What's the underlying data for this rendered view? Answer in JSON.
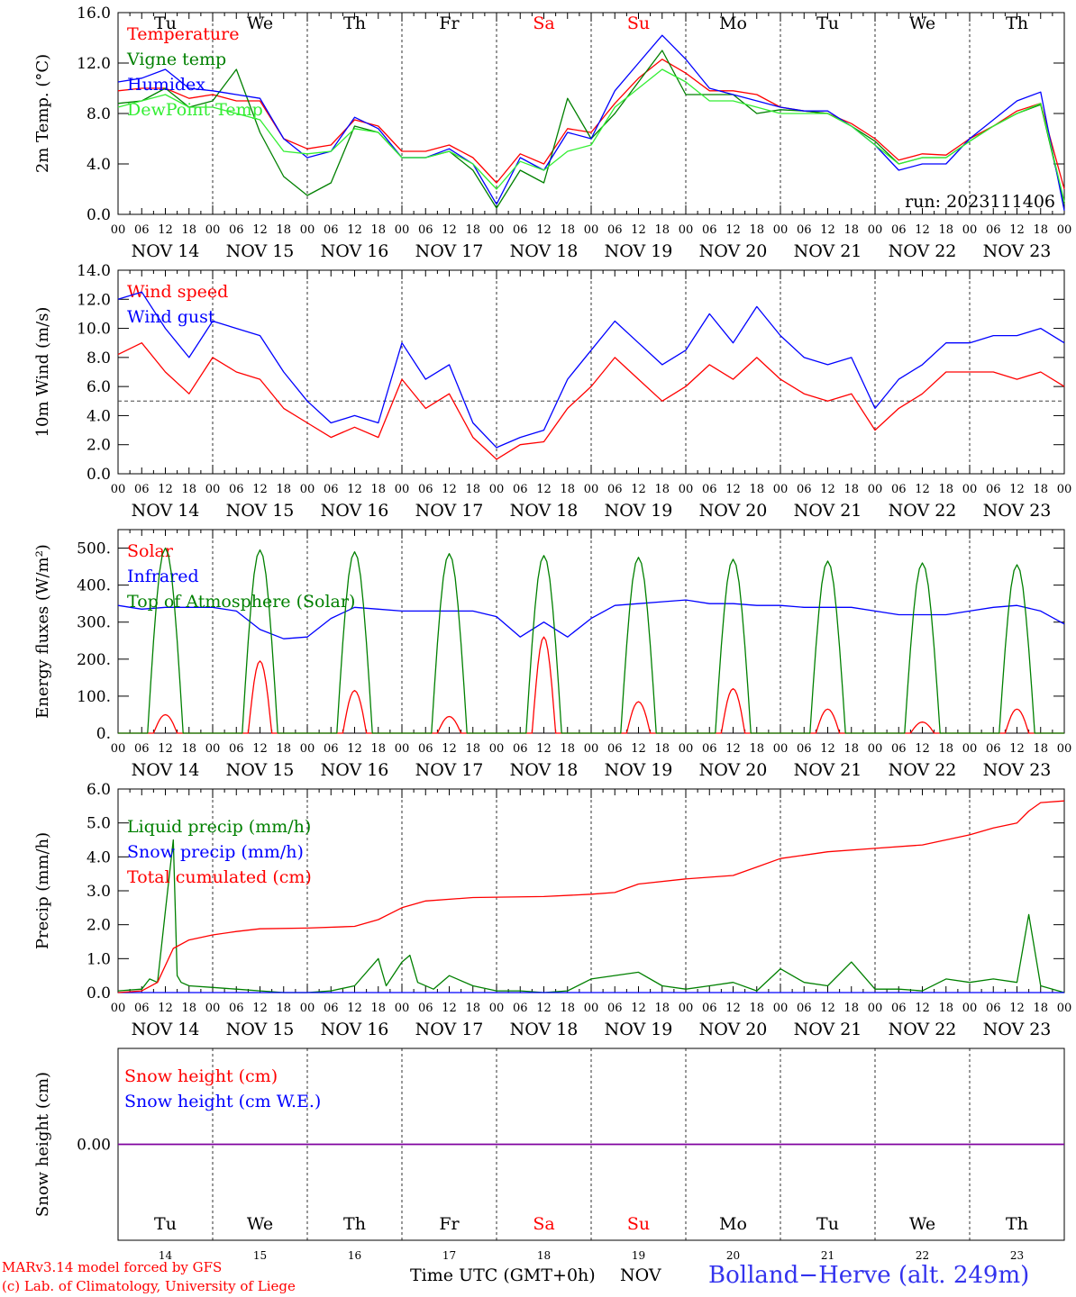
{
  "station": "Bolland−Herve (alt. 249m)",
  "credits": [
    "MARv3.14 model forced by GFS",
    "(c) Lab. of Climatology, University of Liege"
  ],
  "time_axis": {
    "label": "Time UTC (GMT+0h)",
    "month": "NOV",
    "hour_ticks": [
      "00",
      "06",
      "12",
      "18"
    ],
    "date_labels": [
      "NOV 14",
      "NOV 15",
      "NOV 16",
      "NOV 17",
      "NOV 18",
      "NOV 19",
      "NOV 20",
      "NOV 21",
      "NOV 22",
      "NOV 23"
    ],
    "weekdays": [
      "Tu",
      "We",
      "Th",
      "Fr",
      "Sa",
      "Su",
      "Mo",
      "Tu",
      "We",
      "Th"
    ],
    "weekend_color": "#ff0000",
    "day_numbers": [
      "14",
      "15",
      "16",
      "17",
      "18",
      "19",
      "20",
      "21",
      "22",
      "23"
    ]
  },
  "chart_data": [
    {
      "type": "line",
      "ylabel": "2m Temp. (°C)",
      "ylim": [
        0,
        16
      ],
      "yticks": [
        "0.0",
        "4.0",
        "8.0",
        "12.0",
        "16.0"
      ],
      "run_label": "run: 2023111406",
      "x_unit": "hours since NOV 14 00 UTC",
      "series": [
        {
          "name": "Temperature",
          "color": "#ff0000",
          "x": [
            0,
            6,
            12,
            18,
            24,
            30,
            36,
            42,
            48,
            54,
            60,
            66,
            72,
            78,
            84,
            90,
            96,
            102,
            108,
            114,
            120,
            126,
            132,
            138,
            144,
            150,
            156,
            162,
            168,
            174,
            180,
            186,
            192,
            198,
            204,
            210,
            216,
            222,
            228,
            234,
            240
          ],
          "y": [
            9.8,
            10.0,
            10.0,
            9.2,
            9.5,
            9.0,
            9.0,
            6.0,
            5.2,
            5.5,
            7.5,
            7.0,
            5.0,
            5.0,
            5.5,
            4.5,
            2.5,
            4.8,
            4.0,
            6.8,
            6.5,
            8.8,
            10.8,
            12.3,
            11.2,
            9.8,
            9.8,
            9.5,
            8.5,
            8.2,
            8.0,
            7.2,
            6.0,
            4.3,
            4.8,
            4.7,
            6.0,
            7.0,
            8.2,
            8.8,
            2.0
          ]
        },
        {
          "name": "Vigne temp",
          "color": "#008000",
          "x": [
            0,
            6,
            12,
            18,
            24,
            30,
            36,
            42,
            48,
            54,
            60,
            66,
            72,
            78,
            84,
            90,
            96,
            102,
            108,
            114,
            120,
            126,
            132,
            138,
            144,
            150,
            156,
            162,
            168,
            174,
            180,
            186,
            192,
            198,
            204,
            210,
            216,
            222,
            228,
            234,
            240
          ],
          "y": [
            8.8,
            9.0,
            10.0,
            8.5,
            9.0,
            11.5,
            6.5,
            3.0,
            1.5,
            2.5,
            7.0,
            6.5,
            4.5,
            4.5,
            5.0,
            3.5,
            0.5,
            3.5,
            2.5,
            9.2,
            6.0,
            8.0,
            10.5,
            13.0,
            9.5,
            9.5,
            9.5,
            8.0,
            8.3,
            8.2,
            8.0,
            7.0,
            5.8,
            4.0,
            4.5,
            4.5,
            5.8,
            7.0,
            8.0,
            8.7,
            0.8
          ]
        },
        {
          "name": "Humidex",
          "color": "#0000ff",
          "x": [
            0,
            6,
            12,
            18,
            24,
            30,
            36,
            42,
            48,
            54,
            60,
            66,
            72,
            78,
            84,
            90,
            96,
            102,
            108,
            114,
            120,
            126,
            132,
            138,
            144,
            150,
            156,
            162,
            168,
            174,
            180,
            186,
            192,
            198,
            204,
            210,
            216,
            222,
            228,
            234,
            240
          ],
          "y": [
            10.5,
            10.8,
            11.5,
            10.0,
            9.8,
            9.5,
            9.2,
            6.0,
            4.5,
            5.0,
            7.7,
            6.8,
            4.5,
            4.5,
            5.2,
            4.0,
            0.8,
            4.5,
            3.5,
            6.5,
            6.0,
            9.8,
            12.0,
            14.2,
            12.3,
            10.0,
            9.5,
            9.0,
            8.5,
            8.2,
            8.2,
            7.0,
            5.5,
            3.5,
            4.0,
            4.0,
            6.0,
            7.5,
            9.0,
            9.7,
            0.3
          ]
        },
        {
          "name": "DewPoint Temp",
          "color": "#33ee33",
          "x": [
            0,
            6,
            12,
            18,
            24,
            30,
            36,
            42,
            48,
            54,
            60,
            66,
            72,
            78,
            84,
            90,
            96,
            102,
            108,
            114,
            120,
            126,
            132,
            138,
            144,
            150,
            156,
            162,
            168,
            174,
            180,
            186,
            192,
            198,
            204,
            210,
            216,
            222,
            228,
            234,
            240
          ],
          "y": [
            8.5,
            9.0,
            9.5,
            8.5,
            8.5,
            8.0,
            7.5,
            5.0,
            4.8,
            5.0,
            6.8,
            6.5,
            4.5,
            4.5,
            5.0,
            4.0,
            2.0,
            4.2,
            3.5,
            5.0,
            5.5,
            8.5,
            10.0,
            11.5,
            10.5,
            9.0,
            9.0,
            8.5,
            8.0,
            8.0,
            8.0,
            7.0,
            5.5,
            4.0,
            4.5,
            4.5,
            5.8,
            7.0,
            8.0,
            8.8,
            1.0
          ]
        }
      ]
    },
    {
      "type": "line",
      "ylabel": "10m Wind (m/s)",
      "ylim": [
        0,
        14
      ],
      "yticks": [
        "0.0",
        "2.0",
        "4.0",
        "6.0",
        "8.0",
        "10.0",
        "12.0",
        "14.0"
      ],
      "reference_line": 5,
      "series": [
        {
          "name": "Wind speed",
          "color": "#ff0000",
          "x": [
            0,
            6,
            12,
            18,
            24,
            30,
            36,
            42,
            48,
            54,
            60,
            66,
            72,
            78,
            84,
            90,
            96,
            102,
            108,
            114,
            120,
            126,
            132,
            138,
            144,
            150,
            156,
            162,
            168,
            174,
            180,
            186,
            192,
            198,
            204,
            210,
            216,
            222,
            228,
            234,
            240
          ],
          "y": [
            8.2,
            9.0,
            7.0,
            5.5,
            8.0,
            7.0,
            6.5,
            4.5,
            3.5,
            2.5,
            3.2,
            2.5,
            6.5,
            4.5,
            5.5,
            2.5,
            1.0,
            2.0,
            2.2,
            4.5,
            6.0,
            8.0,
            6.5,
            5.0,
            6.0,
            7.5,
            6.5,
            8.0,
            6.5,
            5.5,
            5.0,
            5.5,
            3.0,
            4.5,
            5.5,
            7.0,
            7.0,
            7.0,
            6.5,
            7.0,
            6.0
          ]
        },
        {
          "name": "Wind gust",
          "color": "#0000ff",
          "x": [
            0,
            6,
            12,
            18,
            24,
            30,
            36,
            42,
            48,
            54,
            60,
            66,
            72,
            78,
            84,
            90,
            96,
            102,
            108,
            114,
            120,
            126,
            132,
            138,
            144,
            150,
            156,
            162,
            168,
            174,
            180,
            186,
            192,
            198,
            204,
            210,
            216,
            222,
            228,
            234,
            240
          ],
          "y": [
            12.0,
            12.5,
            10.0,
            8.0,
            10.5,
            10.0,
            9.5,
            7.0,
            5.0,
            3.5,
            4.0,
            3.5,
            9.0,
            6.5,
            7.5,
            3.5,
            1.8,
            2.5,
            3.0,
            6.5,
            8.5,
            10.5,
            9.0,
            7.5,
            8.5,
            11.0,
            9.0,
            11.5,
            9.5,
            8.0,
            7.5,
            8.0,
            4.5,
            6.5,
            7.5,
            9.0,
            9.0,
            9.5,
            9.5,
            10.0,
            9.0
          ]
        }
      ]
    },
    {
      "type": "line",
      "ylabel": "Energy fluxes (W/m²)",
      "ylim": [
        0,
        550
      ],
      "yticks": [
        "0.",
        "100.",
        "200.",
        "300.",
        "400.",
        "500."
      ],
      "series": [
        {
          "name": "Solar",
          "color": "#ff0000",
          "day_peaks": [
            50,
            195,
            115,
            45,
            260,
            85,
            120,
            65,
            30,
            65
          ]
        },
        {
          "name": "Infrared",
          "color": "#0000ff",
          "x": [
            0,
            6,
            12,
            18,
            24,
            30,
            36,
            42,
            48,
            54,
            60,
            66,
            72,
            78,
            84,
            90,
            96,
            102,
            108,
            114,
            120,
            126,
            132,
            138,
            144,
            150,
            156,
            162,
            168,
            174,
            180,
            186,
            192,
            198,
            204,
            210,
            216,
            222,
            228,
            234,
            240
          ],
          "y": [
            345,
            335,
            340,
            340,
            340,
            330,
            280,
            255,
            260,
            310,
            340,
            335,
            330,
            330,
            330,
            330,
            315,
            260,
            300,
            260,
            310,
            345,
            350,
            355,
            360,
            350,
            350,
            345,
            345,
            340,
            340,
            340,
            330,
            320,
            320,
            320,
            330,
            340,
            345,
            330,
            295
          ]
        },
        {
          "name": "Top of Atmosphere (Solar)",
          "color": "#008000",
          "day_peaks": [
            500,
            495,
            490,
            485,
            480,
            475,
            470,
            465,
            460,
            455
          ]
        }
      ]
    },
    {
      "type": "line",
      "ylabel": "Precip (mm/h)",
      "ylim": [
        0,
        6
      ],
      "yticks": [
        "0.0",
        "1.0",
        "2.0",
        "3.0",
        "4.0",
        "5.0",
        "6.0"
      ],
      "series": [
        {
          "name": "Liquid precip (mm/h)",
          "color": "#008000",
          "x": [
            0,
            6,
            8,
            10,
            12,
            14,
            15,
            16,
            18,
            24,
            30,
            36,
            42,
            48,
            54,
            60,
            66,
            68,
            72,
            74,
            76,
            80,
            84,
            90,
            96,
            102,
            108,
            114,
            120,
            132,
            138,
            144,
            150,
            156,
            162,
            168,
            174,
            180,
            186,
            192,
            198,
            204,
            210,
            216,
            222,
            228,
            231,
            234,
            237,
            240
          ],
          "y": [
            0.05,
            0.1,
            0.4,
            0.3,
            2.4,
            4.5,
            0.5,
            0.3,
            0.2,
            0.15,
            0.1,
            0.05,
            0,
            0,
            0.05,
            0.2,
            1.0,
            0.2,
            0.9,
            1.1,
            0.3,
            0.1,
            0.5,
            0.2,
            0.05,
            0.05,
            0,
            0.05,
            0.4,
            0.6,
            0.2,
            0.1,
            0.2,
            0.3,
            0.05,
            0.7,
            0.3,
            0.2,
            0.9,
            0.1,
            0.1,
            0.05,
            0.4,
            0.3,
            0.4,
            0.3,
            2.3,
            0.2,
            0.1,
            0.0
          ]
        },
        {
          "name": "Snow precip (mm/h)",
          "color": "#0000ff",
          "x": [
            0,
            240
          ],
          "y": [
            0,
            0
          ]
        },
        {
          "name": "Total cumulated (cm)",
          "color": "#ff0000",
          "x": [
            0,
            6,
            10,
            14,
            18,
            24,
            30,
            36,
            48,
            60,
            66,
            72,
            78,
            90,
            108,
            120,
            126,
            132,
            144,
            156,
            162,
            168,
            180,
            192,
            204,
            216,
            222,
            228,
            231,
            234,
            240
          ],
          "y": [
            0.0,
            0.05,
            0.3,
            1.3,
            1.55,
            1.7,
            1.8,
            1.88,
            1.9,
            1.95,
            2.15,
            2.5,
            2.7,
            2.8,
            2.83,
            2.9,
            2.95,
            3.2,
            3.35,
            3.45,
            3.7,
            3.95,
            4.15,
            4.25,
            4.35,
            4.65,
            4.85,
            5.0,
            5.35,
            5.6,
            5.65
          ]
        }
      ]
    },
    {
      "type": "line",
      "ylabel": "Snow height (cm)",
      "ylim": [
        -1,
        1
      ],
      "yticks": [
        "0.00"
      ],
      "series": [
        {
          "name": "Snow height (cm)",
          "color": "#ff0000",
          "x": [
            0,
            240
          ],
          "y": [
            0,
            0
          ]
        },
        {
          "name": "Snow height (cm W.E.)",
          "color": "#0000ff",
          "x": [
            0,
            240
          ],
          "y": [
            0,
            0
          ]
        }
      ]
    }
  ]
}
